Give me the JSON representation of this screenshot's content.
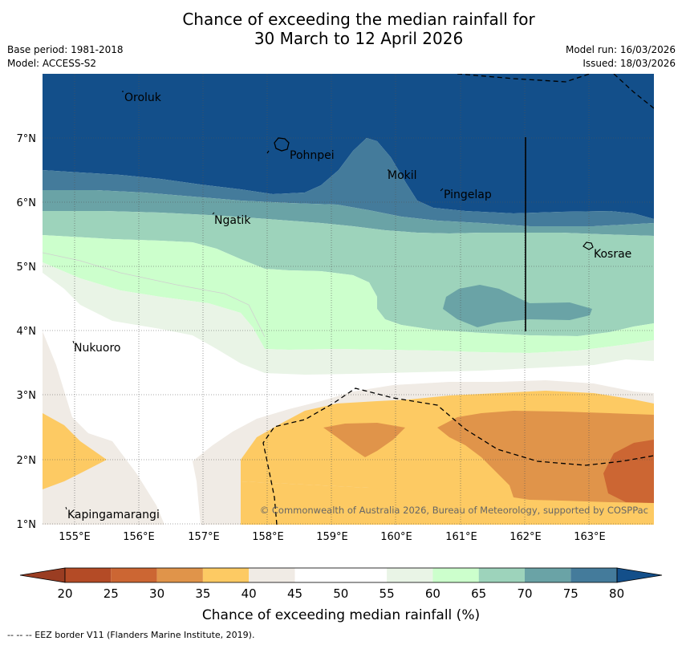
{
  "title": {
    "line1": "Chance of exceeding the median rainfall for",
    "line2": "30 March to 12 April 2026"
  },
  "meta": {
    "base_period": "Base period: 1981-2018",
    "model": "Model: ACCESS-S2",
    "model_run": "Model run: 16/03/2026",
    "issued": "Issued: 18/03/2026"
  },
  "map": {
    "copyright": "© Commonwealth of Australia 2026, Bureau of Meteorology, supported by COSPPac",
    "lon_range": [
      154.5,
      164.0
    ],
    "lat_range": [
      1.0,
      8.0
    ],
    "lon_ticks": [
      "155°E",
      "156°E",
      "157°E",
      "158°E",
      "159°E",
      "160°E",
      "161°E",
      "162°E",
      "163°E"
    ],
    "lat_ticks": [
      "1°N",
      "2°N",
      "3°N",
      "4°N",
      "5°N",
      "6°N",
      "7°N"
    ],
    "places": [
      {
        "name": "Oroluk",
        "lon": 155.75,
        "lat": 7.62
      },
      {
        "name": "Pohnpei",
        "lon": 158.3,
        "lat": 6.75
      },
      {
        "name": "Mokil",
        "lon": 159.85,
        "lat": 6.4
      },
      {
        "name": "Pingelap",
        "lon": 160.75,
        "lat": 6.13
      },
      {
        "name": "Ngatik",
        "lon": 157.15,
        "lat": 5.74
      },
      {
        "name": "Kosrae",
        "lon": 163.0,
        "lat": 5.2
      },
      {
        "name": "Nukuoro",
        "lon": 154.97,
        "lat": 3.74
      },
      {
        "name": "Kapingamarangi",
        "lon": 154.87,
        "lat": 1.13
      }
    ]
  },
  "colorbar": {
    "label": "Chance of exceeding median rainfall (%)",
    "ticks": [
      "20",
      "25",
      "30",
      "35",
      "40",
      "45",
      "50",
      "55",
      "60",
      "65",
      "70",
      "75",
      "80"
    ],
    "colors": {
      "below_20": "#9a3d22",
      "20_25": "#b44b26",
      "25_30": "#cc6633",
      "30_35": "#e0944a",
      "35_40": "#fdca63",
      "40_45": "#f0ebe5",
      "45_50": "#ffffff",
      "50_55": "#ffffff",
      "55_60": "#e9f4e6",
      "60_65": "#ccffcc",
      "65_70": "#9dd3bb",
      "70_75": "#6aa3a6",
      "75_80": "#447b9b",
      "above_80": "#134f8a"
    }
  },
  "footer": {
    "legend": "--  --  -- EEZ border V11 (Flanders Marine Institute, 2019)."
  }
}
